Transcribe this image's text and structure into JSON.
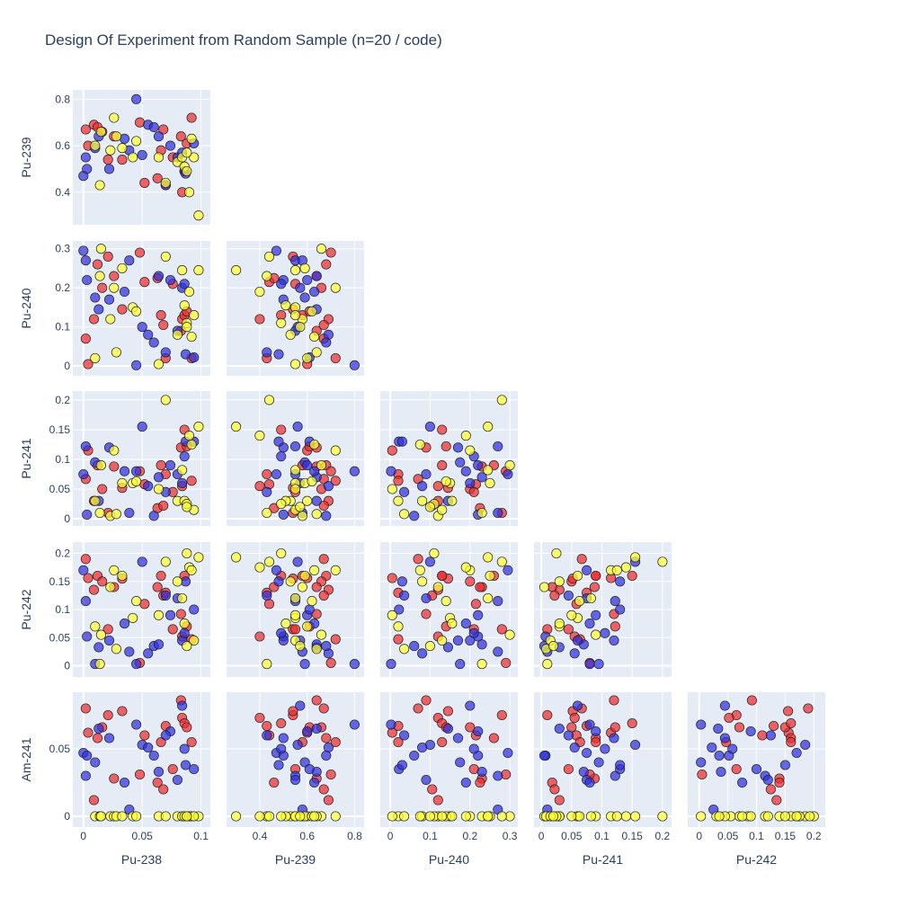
{
  "chart_data": {
    "type": "scatter",
    "title": "Design Of Experiment from Random Sample (n=20 / code)",
    "variables": [
      "Pu-238",
      "Pu-239",
      "Pu-240",
      "Pu-241",
      "Pu-242",
      "Am-241"
    ],
    "series_colors": [
      "#ef2b2d",
      "#2f2fe0",
      "#ffff33"
    ],
    "grid": true,
    "axes": {
      "Pu-238": {
        "range": [
          -0.009,
          0.108
        ],
        "ticks": [
          0,
          0.05,
          0.1
        ],
        "tick_labels": [
          "0",
          "0.05",
          "0.1"
        ]
      },
      "Pu-239": {
        "range": [
          0.26,
          0.84
        ],
        "ticks": [
          0.4,
          0.6,
          0.8
        ],
        "tick_labels": [
          "0.4",
          "0.6",
          "0.8"
        ]
      },
      "Pu-240": {
        "range": [
          -0.025,
          0.32
        ],
        "ticks": [
          0,
          0.1,
          0.2,
          0.3
        ],
        "tick_labels": [
          "0",
          "0.1",
          "0.2",
          "0.3"
        ]
      },
      "Pu-241": {
        "range": [
          -0.012,
          0.215
        ],
        "ticks": [
          0,
          0.05,
          0.1,
          0.15,
          0.2
        ],
        "tick_labels": [
          "0",
          "0.05",
          "0.1",
          "0.15",
          "0.2"
        ]
      },
      "Pu-242": {
        "range": [
          -0.02,
          0.22
        ],
        "ticks": [
          0,
          0.05,
          0.1,
          0.15,
          0.2
        ],
        "tick_labels": [
          "0",
          "0.05",
          "0.1",
          "0.15",
          "0.2"
        ]
      },
      "Am-241": {
        "range": [
          -0.008,
          0.092
        ],
        "ticks": [
          0,
          0.05
        ],
        "tick_labels": [
          "0",
          "0.05"
        ]
      }
    },
    "series": [
      {
        "color": "#ef2b2d",
        "points": [
          {
            "Pu-238": 0.002,
            "Pu-239": 0.67,
            "Pu-240": 0.07,
            "Pu-241": 0.067,
            "Pu-242": 0.19,
            "Am-241": 0.08
          },
          {
            "Pu-238": 0.004,
            "Pu-239": 0.6,
            "Pu-240": 0.005,
            "Pu-241": 0.115,
            "Pu-242": 0.156,
            "Am-241": 0.062
          },
          {
            "Pu-238": 0.009,
            "Pu-239": 0.69,
            "Pu-240": 0.12,
            "Pu-241": 0.03,
            "Pu-242": 0.135,
            "Am-241": 0.012
          },
          {
            "Pu-238": 0.012,
            "Pu-239": 0.68,
            "Pu-240": 0.26,
            "Pu-241": 0.09,
            "Pu-242": 0.16,
            "Am-241": 0.058
          },
          {
            "Pu-238": 0.016,
            "Pu-239": 0.66,
            "Pu-240": 0.2,
            "Pu-241": 0.05,
            "Pu-242": 0.15,
            "Am-241": 0.066
          },
          {
            "Pu-238": 0.021,
            "Pu-239": 0.54,
            "Pu-240": 0.28,
            "Pu-241": 0.01,
            "Pu-242": 0.065,
            "Am-241": 0.075
          },
          {
            "Pu-238": 0.026,
            "Pu-239": 0.64,
            "Pu-240": 0.23,
            "Pu-241": 0.088,
            "Pu-242": 0.14,
            "Am-241": 0.028
          },
          {
            "Pu-238": 0.033,
            "Pu-239": 0.54,
            "Pu-240": 0.145,
            "Pu-241": 0.052,
            "Pu-242": 0.155,
            "Am-241": 0.078
          },
          {
            "Pu-238": 0.048,
            "Pu-239": 0.7,
            "Pu-240": 0.29,
            "Pu-241": 0.08,
            "Pu-242": 0.005,
            "Am-241": 0.031
          },
          {
            "Pu-238": 0.052,
            "Pu-239": 0.44,
            "Pu-240": 0.215,
            "Pu-241": 0.058,
            "Pu-242": 0.11,
            "Am-241": 0.06
          },
          {
            "Pu-238": 0.063,
            "Pu-239": 0.46,
            "Pu-240": 0.225,
            "Pu-241": 0.018,
            "Pu-242": 0.14,
            "Am-241": 0.025
          },
          {
            "Pu-238": 0.066,
            "Pu-239": 0.58,
            "Pu-240": 0.13,
            "Pu-241": 0.09,
            "Pu-242": 0.16,
            "Am-241": 0.055
          },
          {
            "Pu-238": 0.068,
            "Pu-239": 0.67,
            "Pu-240": 0.105,
            "Pu-241": 0.022,
            "Pu-242": 0.125,
            "Am-241": 0.02
          },
          {
            "Pu-238": 0.07,
            "Pu-239": 0.43,
            "Pu-240": 0.02,
            "Pu-241": 0.075,
            "Pu-242": 0.13,
            "Am-241": 0.067
          },
          {
            "Pu-238": 0.076,
            "Pu-239": 0.55,
            "Pu-240": 0.21,
            "Pu-241": 0.045,
            "Pu-242": 0.065,
            "Am-241": 0.035
          },
          {
            "Pu-238": 0.083,
            "Pu-239": 0.64,
            "Pu-240": 0.09,
            "Pu-241": 0.12,
            "Pu-242": 0.092,
            "Am-241": 0.086
          },
          {
            "Pu-238": 0.084,
            "Pu-239": 0.4,
            "Pu-240": 0.12,
            "Pu-241": 0.055,
            "Pu-242": 0.052,
            "Am-241": 0.073
          },
          {
            "Pu-238": 0.086,
            "Pu-239": 0.49,
            "Pu-240": 0.13,
            "Pu-241": 0.15,
            "Pu-242": 0.16,
            "Am-241": 0.069
          },
          {
            "Pu-238": 0.092,
            "Pu-239": 0.72,
            "Pu-240": 0.02,
            "Pu-241": 0.064,
            "Pu-242": 0.047,
            "Am-241": 0.055
          },
          {
            "Pu-238": 0.088,
            "Pu-239": 0.61,
            "Pu-240": 0.14,
            "Pu-241": 0.122,
            "Pu-242": 0.07,
            "Am-241": 0.066
          }
        ]
      },
      {
        "color": "#2f2fe0",
        "points": [
          {
            "Pu-238": 0.0,
            "Pu-239": 0.47,
            "Pu-240": 0.295,
            "Pu-241": 0.075,
            "Pu-242": 0.17,
            "Am-241": 0.047
          },
          {
            "Pu-238": 0.002,
            "Pu-239": 0.55,
            "Pu-240": 0.27,
            "Pu-241": 0.122,
            "Pu-242": 0.115,
            "Am-241": 0.03
          },
          {
            "Pu-238": 0.003,
            "Pu-239": 0.5,
            "Pu-240": 0.22,
            "Pu-241": 0.007,
            "Pu-242": 0.052,
            "Am-241": 0.045
          },
          {
            "Pu-238": 0.01,
            "Pu-239": 0.59,
            "Pu-240": 0.175,
            "Pu-241": 0.095,
            "Pu-242": 0.003,
            "Am-241": 0.04
          },
          {
            "Pu-238": 0.013,
            "Pu-239": 0.64,
            "Pu-240": 0.145,
            "Pu-241": 0.03,
            "Pu-242": 0.033,
            "Am-241": 0.065
          },
          {
            "Pu-238": 0.022,
            "Pu-239": 0.5,
            "Pu-240": 0.17,
            "Pu-241": 0.12,
            "Pu-242": 0.045,
            "Am-241": 0.058
          },
          {
            "Pu-238": 0.039,
            "Pu-239": 0.58,
            "Pu-240": 0.27,
            "Pu-241": 0.01,
            "Pu-242": 0.025,
            "Am-241": 0.005
          },
          {
            "Pu-238": 0.045,
            "Pu-239": 0.8,
            "Pu-240": 0.002,
            "Pu-241": 0.08,
            "Pu-242": 0.003,
            "Am-241": 0.068
          },
          {
            "Pu-238": 0.05,
            "Pu-239": 0.56,
            "Pu-240": 0.1,
            "Pu-241": 0.155,
            "Pu-242": 0.185,
            "Am-241": 0.053
          },
          {
            "Pu-238": 0.055,
            "Pu-239": 0.69,
            "Pu-240": 0.08,
            "Pu-241": 0.055,
            "Pu-242": 0.022,
            "Am-241": 0.051
          },
          {
            "Pu-238": 0.06,
            "Pu-239": 0.68,
            "Pu-240": 0.06,
            "Pu-241": 0.005,
            "Pu-242": 0.035,
            "Am-241": 0.045
          },
          {
            "Pu-238": 0.064,
            "Pu-239": 0.64,
            "Pu-240": 0.23,
            "Pu-241": 0.07,
            "Pu-242": 0.038,
            "Am-241": 0.033
          },
          {
            "Pu-238": 0.074,
            "Pu-239": 0.6,
            "Pu-240": 0.22,
            "Pu-241": 0.09,
            "Pu-242": 0.09,
            "Am-241": 0.063
          },
          {
            "Pu-238": 0.08,
            "Pu-239": 0.55,
            "Pu-240": 0.09,
            "Pu-241": 0.075,
            "Pu-242": 0.12,
            "Am-241": 0.027
          },
          {
            "Pu-238": 0.084,
            "Pu-239": 0.57,
            "Pu-240": 0.2,
            "Pu-241": 0.06,
            "Pu-242": 0.045,
            "Am-241": 0.082
          },
          {
            "Pu-238": 0.086,
            "Pu-239": 0.49,
            "Pu-240": 0.21,
            "Pu-241": 0.105,
            "Pu-242": 0.058,
            "Am-241": 0.05
          },
          {
            "Pu-238": 0.094,
            "Pu-239": 0.61,
            "Pu-240": 0.022,
            "Pu-241": 0.13,
            "Pu-242": 0.1,
            "Am-241": 0.035
          },
          {
            "Pu-238": 0.07,
            "Pu-239": 0.43,
            "Pu-240": 0.035,
            "Pu-241": 0.045,
            "Pu-242": 0.125,
            "Am-241": 0.06
          },
          {
            "Pu-238": 0.087,
            "Pu-239": 0.48,
            "Pu-240": 0.03,
            "Pu-241": 0.13,
            "Pu-242": 0.15,
            "Am-241": 0.038
          },
          {
            "Pu-238": 0.035,
            "Pu-239": 0.63,
            "Pu-240": 0.19,
            "Pu-241": 0.08,
            "Pu-242": 0.075,
            "Am-241": 0.025
          }
        ]
      },
      {
        "color": "#ffff33",
        "points": [
          {
            "Pu-238": 0.01,
            "Pu-239": 0.6,
            "Pu-240": 0.02,
            "Pu-241": 0.03,
            "Pu-242": 0.07,
            "Am-241": 0.0
          },
          {
            "Pu-238": 0.014,
            "Pu-239": 0.43,
            "Pu-240": 0.23,
            "Pu-241": 0.01,
            "Pu-242": 0.003,
            "Am-241": 0.0
          },
          {
            "Pu-238": 0.015,
            "Pu-239": 0.66,
            "Pu-240": 0.3,
            "Pu-241": 0.09,
            "Pu-242": 0.055,
            "Am-241": 0.0
          },
          {
            "Pu-238": 0.023,
            "Pu-239": 0.58,
            "Pu-240": 0.12,
            "Pu-241": 0.005,
            "Pu-242": 0.14,
            "Am-241": 0.0
          },
          {
            "Pu-238": 0.026,
            "Pu-239": 0.72,
            "Pu-240": 0.2,
            "Pu-241": 0.115,
            "Pu-242": 0.17,
            "Am-241": 0.0
          },
          {
            "Pu-238": 0.028,
            "Pu-239": 0.64,
            "Pu-240": 0.035,
            "Pu-241": 0.008,
            "Pu-242": 0.03,
            "Am-241": 0.0
          },
          {
            "Pu-238": 0.033,
            "Pu-239": 0.59,
            "Pu-240": 0.25,
            "Pu-241": 0.06,
            "Pu-242": 0.16,
            "Am-241": 0.0
          },
          {
            "Pu-238": 0.042,
            "Pu-239": 0.55,
            "Pu-240": 0.15,
            "Pu-241": 0.06,
            "Pu-242": 0.085,
            "Am-241": 0.0
          },
          {
            "Pu-238": 0.045,
            "Pu-239": 0.62,
            "Pu-240": 0.14,
            "Pu-241": 0.063,
            "Pu-242": 0.115,
            "Am-241": 0.0
          },
          {
            "Pu-238": 0.064,
            "Pu-239": 0.55,
            "Pu-240": 0.005,
            "Pu-241": 0.05,
            "Pu-242": 0.09,
            "Am-241": 0.0
          },
          {
            "Pu-238": 0.07,
            "Pu-239": 0.44,
            "Pu-240": 0.28,
            "Pu-241": 0.2,
            "Pu-242": 0.185,
            "Am-241": 0.0
          },
          {
            "Pu-238": 0.08,
            "Pu-239": 0.53,
            "Pu-240": 0.08,
            "Pu-241": 0.03,
            "Pu-242": 0.15,
            "Am-241": 0.0
          },
          {
            "Pu-238": 0.084,
            "Pu-239": 0.55,
            "Pu-240": 0.245,
            "Pu-241": 0.082,
            "Pu-242": 0.12,
            "Am-241": 0.0
          },
          {
            "Pu-238": 0.086,
            "Pu-239": 0.51,
            "Pu-240": 0.155,
            "Pu-241": 0.03,
            "Pu-242": 0.075,
            "Am-241": 0.0
          },
          {
            "Pu-238": 0.088,
            "Pu-239": 0.49,
            "Pu-240": 0.11,
            "Pu-241": 0.025,
            "Pu-242": 0.2,
            "Am-241": 0.0
          },
          {
            "Pu-238": 0.09,
            "Pu-239": 0.4,
            "Pu-240": 0.19,
            "Pu-241": 0.14,
            "Pu-242": 0.175,
            "Am-241": 0.0
          },
          {
            "Pu-238": 0.092,
            "Pu-239": 0.63,
            "Pu-240": 0.075,
            "Pu-241": 0.125,
            "Pu-242": 0.17,
            "Am-241": 0.0
          },
          {
            "Pu-238": 0.098,
            "Pu-239": 0.3,
            "Pu-240": 0.245,
            "Pu-241": 0.155,
            "Pu-242": 0.193,
            "Am-241": 0.0
          },
          {
            "Pu-238": 0.094,
            "Pu-239": 0.55,
            "Pu-240": 0.13,
            "Pu-241": 0.015,
            "Pu-242": 0.045,
            "Am-241": 0.0
          },
          {
            "Pu-238": 0.088,
            "Pu-239": 0.57,
            "Pu-240": 0.1,
            "Pu-241": 0.02,
            "Pu-242": 0.035,
            "Am-241": 0.0
          }
        ]
      }
    ]
  }
}
